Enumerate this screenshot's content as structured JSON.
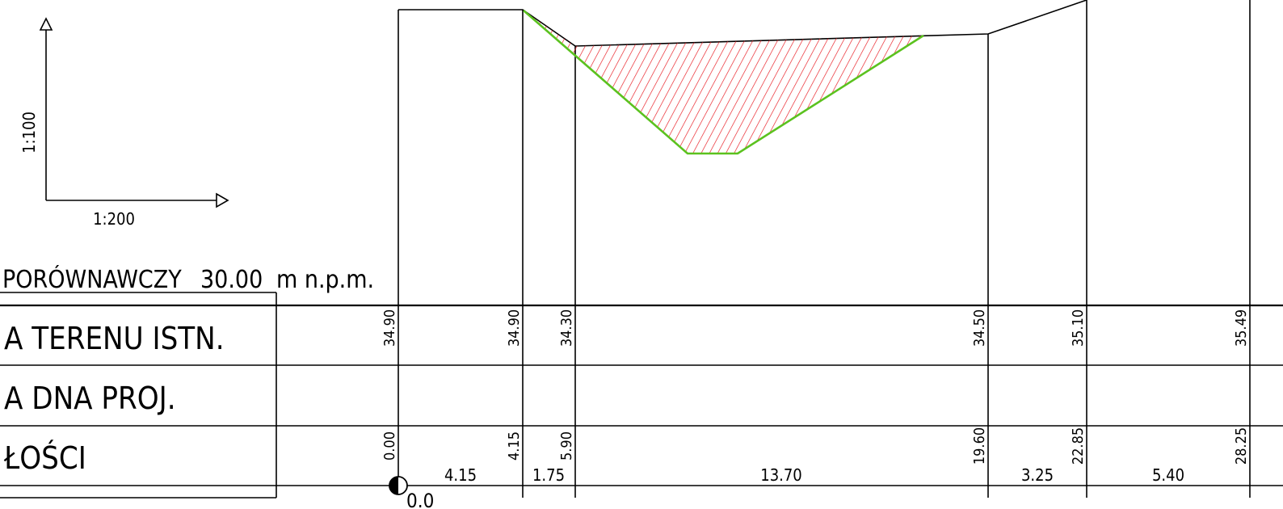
{
  "scales": {
    "vertical": "1:100",
    "horizontal": "1:200"
  },
  "datum": {
    "label": "PORÓWNAWCZY",
    "value": "30.00",
    "unit": "m n.p.m."
  },
  "table": {
    "rows": [
      {
        "label": "A  TERENU  ISTN."
      },
      {
        "label": "A  DNA  PROJ."
      },
      {
        "label": "ŁOŚCI"
      }
    ]
  },
  "stations": [
    {
      "elevation": "34.90",
      "distance": "0.00"
    },
    {
      "elevation": "34.90",
      "distance": "4.15"
    },
    {
      "elevation": "34.30",
      "distance": "5.90"
    },
    {
      "elevation": "34.50",
      "distance": "19.60"
    },
    {
      "elevation": "35.10",
      "distance": "22.85"
    },
    {
      "elevation": "35.49",
      "distance": "28.25"
    }
  ],
  "segments": [
    "4.15",
    "1.75",
    "13.70",
    "3.25",
    "5.40"
  ],
  "origin_label": "0.0",
  "colors": {
    "lines": "#000000",
    "design_profile": "#5bc21f",
    "hatch": "#e8141b"
  }
}
